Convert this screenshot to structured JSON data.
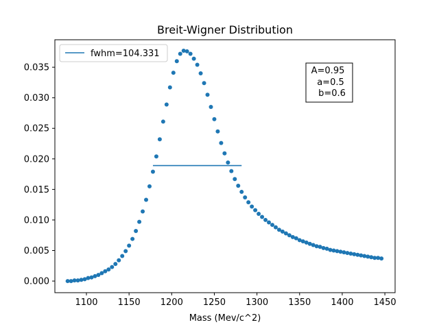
{
  "chart_data": {
    "type": "scatter",
    "title": "Breit-Wigner Distribution",
    "xlabel": "Mass (Mev/c^2)",
    "ylabel": "",
    "xlim": [
      1063,
      1462
    ],
    "ylim": [
      -0.0019,
      0.0395
    ],
    "xticks": [
      1100,
      1150,
      1200,
      1250,
      1300,
      1350,
      1400,
      1450
    ],
    "xtick_labels": [
      "1100",
      "1150",
      "1200",
      "1250",
      "1300",
      "1350",
      "1400",
      "1450"
    ],
    "yticks": [
      0.0,
      0.005,
      0.01,
      0.015,
      0.02,
      0.025,
      0.03,
      0.035
    ],
    "ytick_labels": [
      "0.000",
      "0.005",
      "0.010",
      "0.015",
      "0.020",
      "0.025",
      "0.030",
      "0.035"
    ],
    "grid": false,
    "legend_position": "top-left",
    "series": [
      {
        "name": "",
        "kind": "scatter",
        "color": "#1f77b4",
        "x": [
          1078,
          1082,
          1086,
          1090,
          1094,
          1098,
          1102,
          1106,
          1110,
          1114,
          1118,
          1122,
          1126,
          1130,
          1134,
          1138,
          1142,
          1146,
          1150,
          1154,
          1158,
          1162,
          1166,
          1170,
          1174,
          1178,
          1182,
          1186,
          1190,
          1194,
          1198,
          1202,
          1206,
          1210,
          1214,
          1218,
          1222,
          1226,
          1230,
          1234,
          1238,
          1242,
          1246,
          1250,
          1254,
          1258,
          1262,
          1266,
          1270,
          1274,
          1278,
          1282,
          1286,
          1290,
          1294,
          1298,
          1302,
          1306,
          1310,
          1314,
          1318,
          1322,
          1326,
          1330,
          1334,
          1338,
          1342,
          1346,
          1350,
          1354,
          1358,
          1362,
          1366,
          1370,
          1374,
          1378,
          1382,
          1386,
          1390,
          1394,
          1398,
          1402,
          1406,
          1410,
          1414,
          1418,
          1422,
          1426,
          1430,
          1434,
          1438,
          1442,
          1446
        ],
        "y": [
          0.0,
          0.0,
          0.0001,
          0.0001,
          0.0002,
          0.0003,
          0.0005,
          0.0006,
          0.0008,
          0.001,
          0.0013,
          0.0016,
          0.0019,
          0.0023,
          0.0028,
          0.0034,
          0.0041,
          0.0049,
          0.0058,
          0.0069,
          0.0082,
          0.0097,
          0.0114,
          0.0133,
          0.0155,
          0.0179,
          0.0204,
          0.0232,
          0.0261,
          0.0289,
          0.0317,
          0.0341,
          0.036,
          0.0372,
          0.0377,
          0.0376,
          0.0372,
          0.0364,
          0.0354,
          0.034,
          0.0324,
          0.0305,
          0.0285,
          0.0265,
          0.0245,
          0.0226,
          0.0209,
          0.0194,
          0.018,
          0.0167,
          0.0156,
          0.0146,
          0.0137,
          0.0129,
          0.0122,
          0.0116,
          0.011,
          0.0105,
          0.01,
          0.0096,
          0.0092,
          0.0088,
          0.0084,
          0.0081,
          0.0078,
          0.0075,
          0.0072,
          0.007,
          0.0067,
          0.0065,
          0.0063,
          0.0061,
          0.0059,
          0.0057,
          0.0056,
          0.0054,
          0.0053,
          0.0051,
          0.005,
          0.0049,
          0.0048,
          0.0047,
          0.0046,
          0.0045,
          0.0044,
          0.0043,
          0.0042,
          0.0041,
          0.004,
          0.0039,
          0.0038,
          0.0038,
          0.0037
        ]
      },
      {
        "name": "fwhm=104.331",
        "kind": "line",
        "color": "#1f77b4",
        "x": [
          1178,
          1282
        ],
        "y": [
          0.0189,
          0.0189
        ]
      }
    ],
    "annotation": {
      "lines": [
        "A=0.95",
        "a=0.5",
        "b=0.6"
      ]
    }
  }
}
